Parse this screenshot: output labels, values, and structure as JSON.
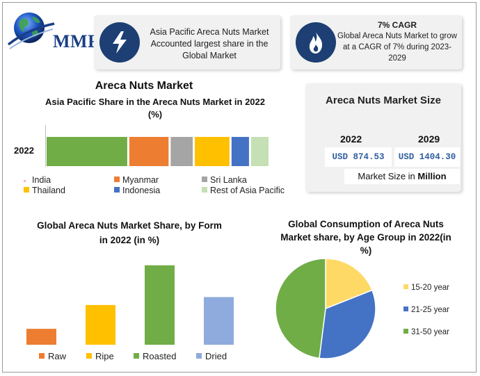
{
  "logo": {
    "text": "MMR",
    "icon": "globe-icon"
  },
  "card_region": {
    "icon": "lightning-bolt-icon",
    "text": "Asia Pacific Areca Nuts Market Accounted largest share in the Global Market"
  },
  "card_cagr": {
    "icon": "flame-icon",
    "title": "7% CAGR",
    "text": "Global Areca Nuts Market to grow at a CAGR of 7% during 2023-2029"
  },
  "market_size": {
    "title": "Areca Nuts Market Size",
    "year_1": "2022",
    "year_2": "2029",
    "value_1": "USD 874.53",
    "value_2": "USD 1404.30",
    "unit_prefix": "Market Size in ",
    "unit_bold": "Million"
  },
  "colors": {
    "india": "#70ad47",
    "myanmar": "#ed7d31",
    "sri_lanka": "#a5a5a5",
    "thailand": "#ffc000",
    "indonesia": "#4472c4",
    "rest_apac": "#c5e0b4",
    "form_raw": "#ed7d31",
    "form_ripe": "#ffc000",
    "form_roasted": "#70ad47",
    "form_dried": "#8faadc",
    "age_15_20": "#ffd966",
    "age_21_25": "#4472c4",
    "age_31_50": "#70ad47",
    "brand": "#1d3f73"
  },
  "chart_data": [
    {
      "type": "bar",
      "orientation": "horizontal-stacked",
      "title": "Areca Nuts Market",
      "subtitle": "Asia Pacific Share in the Areca Nuts Market in 2022 (%)",
      "categories": [
        "2022"
      ],
      "series": [
        {
          "name": "India",
          "values": [
            36
          ]
        },
        {
          "name": "Myanmar",
          "values": [
            18
          ]
        },
        {
          "name": "Sri Lanka",
          "values": [
            10.5
          ]
        },
        {
          "name": "Thailand",
          "values": [
            16
          ]
        },
        {
          "name": "Indonesia",
          "values": [
            8.5
          ]
        },
        {
          "name": "Rest of Asia Pacific",
          "values": [
            8.5
          ]
        }
      ],
      "legend": "bottom"
    },
    {
      "type": "bar",
      "title": "Global Areca Nuts Market Share, by Form  in 2022 (in %)",
      "categories": [
        "Raw",
        "Ripe",
        "Roasted",
        "Dried"
      ],
      "values": [
        8,
        20,
        40,
        24
      ],
      "ylim": [
        0,
        42
      ],
      "legend": "bottom"
    },
    {
      "type": "pie",
      "title": "Global Consumption of Areca Nuts Market share, by Age Group in 2022(in %)",
      "categories": [
        "15-20 year",
        "21-25 year",
        "31-50 year"
      ],
      "values": [
        19,
        33,
        48
      ],
      "legend": "right"
    }
  ]
}
